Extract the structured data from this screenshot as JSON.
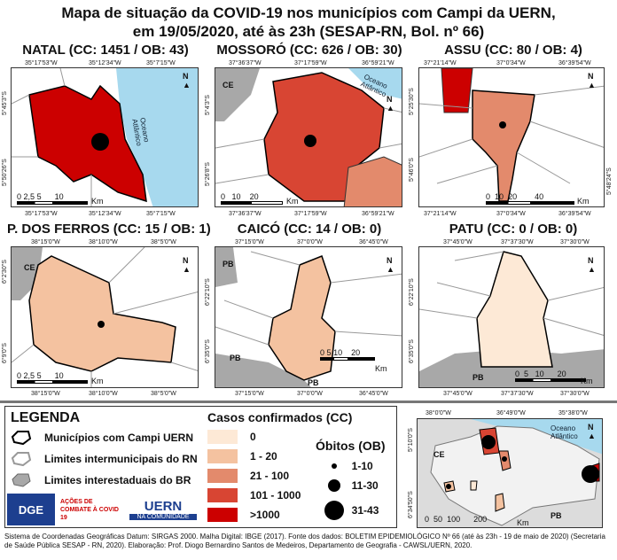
{
  "title_line1": "Mapa de situação da COVID-19 nos municípios com Campi da UERN,",
  "title_line2": "em 19/05/2020, até às 23h (SESAP-RN, Bol. nº 66)",
  "panels": {
    "natal": {
      "title": "NATAL (CC: 1451 / OB: 43)",
      "lon": [
        "35°17'53\"W",
        "35°12'34\"W",
        "35°7'15\"W"
      ],
      "lat": [
        "5°45'3\"S",
        "5°50'26\"S"
      ],
      "scale": [
        "0",
        "2,5",
        "5",
        "10"
      ],
      "scale_unit": "Km",
      "ocean": "Oceano Atlântico",
      "fill": "#cc0000"
    },
    "mossoro": {
      "title": "MOSSORÓ (CC: 626 / OB: 30)",
      "lon": [
        "37°36'37\"W",
        "37°17'59\"W",
        "36°59'21\"W"
      ],
      "lat": [
        "5°4'3\"S",
        "5°26'8\"S"
      ],
      "scale": [
        "0",
        "10",
        "20"
      ],
      "scale_unit": "Km",
      "ocean": "Oceano Atlântico",
      "state_label": "CE",
      "fill": "#d84533"
    },
    "assu": {
      "title": "ASSU (CC: 80 / OB: 4)",
      "lon": [
        "37°21'14\"W",
        "37°0'34\"W",
        "36°39'54\"W"
      ],
      "lat": [
        "5°25'30\"S",
        "5°46'0\"S",
        "5°48'24\"S"
      ],
      "scale": [
        "0",
        "10",
        "20",
        "40"
      ],
      "scale_unit": "Km",
      "fill": "#e38a6c"
    },
    "pauferros": {
      "title": "P. DOS FERROS (CC: 15 / OB: 1)",
      "lon": [
        "38°15'0\"W",
        "38°10'0\"W",
        "38°5'0\"W"
      ],
      "lat": [
        "6°2'30\"S",
        "6°9'0\"S"
      ],
      "scale": [
        "0",
        "2,5",
        "5",
        "10"
      ],
      "scale_unit": "Km",
      "state_label": "CE",
      "fill": "#f4c2a0"
    },
    "caico": {
      "title": "CAICÓ (CC: 14 / OB: 0)",
      "lon": [
        "37°15'0\"W",
        "37°0'0\"W",
        "36°45'0\"W"
      ],
      "lat": [
        "6°22'10\"S",
        "6°35'0\"S"
      ],
      "scale": [
        "0",
        "5",
        "10",
        "20"
      ],
      "scale_unit": "Km",
      "state_label": "PB",
      "fill": "#f4c2a0"
    },
    "patu": {
      "title": "PATU (CC: 0 / OB: 0)",
      "lon": [
        "37°45'0\"W",
        "37°37'30\"W",
        "37°30'0\"W"
      ],
      "lat": [
        "6°22'10\"S",
        "6°35'0\"S"
      ],
      "scale": [
        "0",
        "5",
        "10",
        "20"
      ],
      "scale_unit": "Km",
      "state_label": "PB",
      "fill": "#fde9d6"
    }
  },
  "legend": {
    "title": "LEGENDA",
    "items": [
      "Municípios com Campi UERN",
      "Limites intermunicipais do RN",
      "Limites interestaduais do BR"
    ],
    "cc_title": "Casos confirmados (CC)",
    "cc_classes": [
      {
        "label": "0",
        "color": "#fde9d6"
      },
      {
        "label": "1 - 20",
        "color": "#f4c2a0"
      },
      {
        "label": "21 - 100",
        "color": "#e38a6c"
      },
      {
        "label": "101 - 1000",
        "color": "#d84533"
      },
      {
        "label": ">1000",
        "color": "#cc0000"
      }
    ],
    "ob_title": "Óbitos (OB)",
    "ob_classes": [
      "1-10",
      "11-30",
      "31-43"
    ]
  },
  "overview": {
    "lon": [
      "38°0'0\"W",
      "36°49'0\"W",
      "35°38'0\"W"
    ],
    "lat": [
      "5°10'0\"S",
      "6°34'50\"S"
    ],
    "scale": [
      "0",
      "50",
      "100",
      "200"
    ],
    "scale_unit": "Km",
    "ocean": "Oceano Atlântico",
    "ce": "CE",
    "pb": "PB"
  },
  "logos": {
    "dge": "DGE",
    "acoes": "AÇÕES DE COMBATE À COVID 19",
    "uern": "UERN",
    "uern_sub": "NA COMUNIDADE"
  },
  "footer": "Sistema de Coordenadas Geográficas Datum: SIRGAS 2000. Malha Digital: IBGE (2017).  Fonte dos dados: BOLETIM EPIDEMIOLÓGICO Nº 66 (até às 23h - 19 de maio de 2020) (Secretaria de Saúde Pública SESAP - RN, 2020). Elaboração: Prof. Diogo Bernardino Santos de Medeiros, Departamento de Geografia - CAWSL/UERN, 2020."
}
